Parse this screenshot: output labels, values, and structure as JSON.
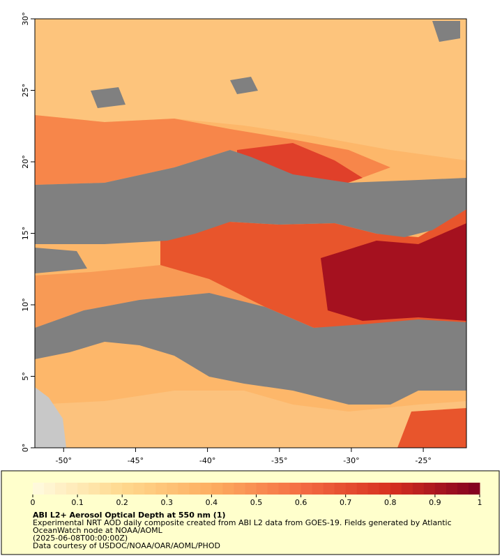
{
  "map": {
    "xlim": [
      -52,
      -22
    ],
    "ylim": [
      0,
      30
    ],
    "xticks": [
      {
        "value": -50,
        "label": "-50°"
      },
      {
        "value": -45,
        "label": "-45°"
      },
      {
        "value": -40,
        "label": "-40°"
      },
      {
        "value": -35,
        "label": "-35°"
      },
      {
        "value": -30,
        "label": "-30°"
      },
      {
        "value": -25,
        "label": "-25°"
      }
    ],
    "yticks": [
      {
        "value": 0,
        "label": "0°"
      },
      {
        "value": 5,
        "label": "5°"
      },
      {
        "value": 10,
        "label": "10°"
      },
      {
        "value": 15,
        "label": "15°"
      },
      {
        "value": 20,
        "label": "20°"
      },
      {
        "value": 25,
        "label": "25°"
      },
      {
        "value": 30,
        "label": "30°"
      }
    ]
  },
  "colorbar": {
    "lim": [
      0,
      1
    ],
    "ticks": [
      0,
      0.1,
      0.2,
      0.3,
      0.4,
      0.5,
      0.6,
      0.7,
      0.8,
      0.9,
      1
    ],
    "colors": [
      "#fffbe0",
      "#fed98e",
      "#fdae61",
      "#f46d43",
      "#d7301f",
      "#7f0020"
    ]
  },
  "legend": {
    "title": "ABI L2+ Aerosol Optical Depth at 550 nm (1)",
    "lines": [
      "Experimental NRT AOD daily composite created from ABI L2 data from GOES-19. Fields generated by Atlantic",
      "OceanWatch node at NOAA/AOML",
      "(2025-06-08T00:00:00Z)",
      "Data courtesy of USDOC/NOAA/OAR/AOML/PHOD"
    ]
  }
}
